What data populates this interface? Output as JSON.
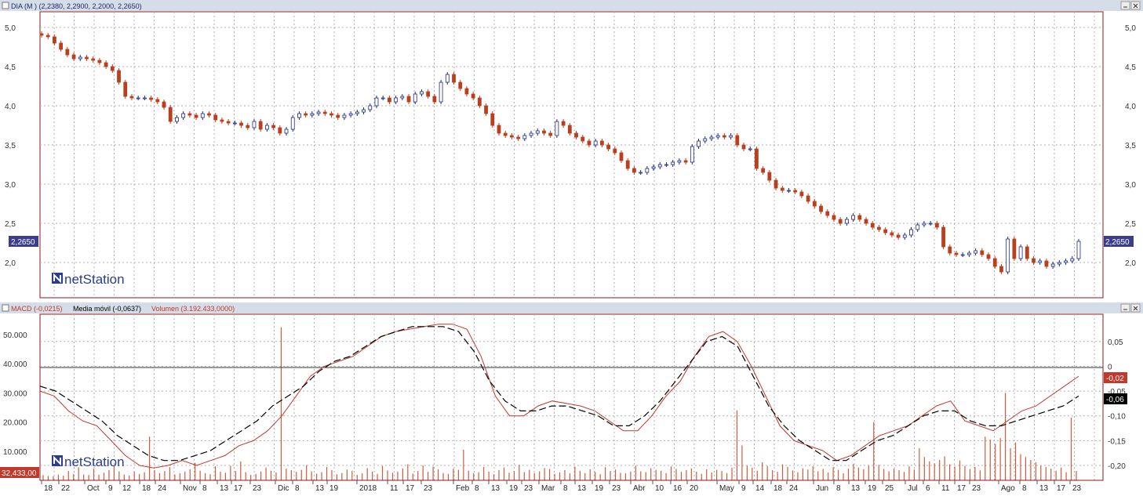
{
  "top_panel": {
    "title": "DIA (M ) (2,2380, 2,2900, 2,2000, 2,2650)",
    "last_price_label": "2,2650",
    "watermark": "netStation",
    "y_ticks": [
      "5,0",
      "4,5",
      "4,0",
      "3,5",
      "3,0",
      "2,5",
      "2,0"
    ],
    "controls": [
      "minimize-button",
      "close-button"
    ]
  },
  "bottom_panel": {
    "title_macd": "MACD (-0,0215)",
    "title_ma": "Media móvil (-0,0637)",
    "title_volume": "Volumen (3.192.433,0000)",
    "watermark": "netStation",
    "left_ticks": [
      "50.000",
      "40.000",
      "30.000",
      "20.000",
      "10.000"
    ],
    "right_ticks": [
      "0,05",
      "0",
      "-0,05",
      "-0,10",
      "-0,15",
      "-0,20"
    ],
    "macd_value_label": "-0,02",
    "signal_value_label": "-0,06",
    "volume_value_label": "32,433,00"
  },
  "x_axis": {
    "labels": [
      "18",
      "22",
      "Oct",
      "9",
      "12",
      "18",
      "24",
      "Nov",
      "8",
      "13",
      "17",
      "23",
      "Dic",
      "8",
      "13",
      "19",
      "2018",
      "11",
      "17",
      "23",
      "Feb",
      "8",
      "13",
      "19",
      "23",
      "Mar",
      "8",
      "13",
      "19",
      "23",
      "Abr",
      "10",
      "16",
      "20",
      "May",
      "9",
      "14",
      "18",
      "24",
      "Jun",
      "8",
      "13",
      "19",
      "25",
      "Jul",
      "6",
      "11",
      "17",
      "23",
      "Ago",
      "8",
      "13",
      "17",
      "23"
    ]
  },
  "colors": {
    "up": "#1f2a80",
    "down": "#b8401e",
    "macd_line": "#c0392b",
    "signal_line": "#000000",
    "volume": "#d25a3c",
    "grid": "#b0b0b0",
    "border": "#8b1a1a",
    "price_label_bg": "#3d3d8f",
    "macd_label_bg": "#c0392b",
    "signal_label_bg": "#000000",
    "title_bar": "#d5dde8"
  },
  "chart_data": [
    {
      "type": "candlestick",
      "ylim": [
        1.55,
        5.2
      ],
      "close_series": [
        4.9,
        4.88,
        4.8,
        4.72,
        4.65,
        4.6,
        4.62,
        4.6,
        4.58,
        4.55,
        4.5,
        4.45,
        4.3,
        4.12,
        4.1,
        4.1,
        4.1,
        4.08,
        4.05,
        3.98,
        3.8,
        3.85,
        3.9,
        3.88,
        3.85,
        3.9,
        3.88,
        3.82,
        3.8,
        3.78,
        3.78,
        3.75,
        3.72,
        3.8,
        3.7,
        3.75,
        3.72,
        3.65,
        3.7,
        3.85,
        3.9,
        3.88,
        3.9,
        3.92,
        3.9,
        3.88,
        3.85,
        3.88,
        3.9,
        3.92,
        3.95,
        4.0,
        4.1,
        4.1,
        4.05,
        4.1,
        4.12,
        4.05,
        4.15,
        4.18,
        4.12,
        4.05,
        4.3,
        4.4,
        4.3,
        4.22,
        4.15,
        4.1,
        4.0,
        3.9,
        3.75,
        3.65,
        3.62,
        3.6,
        3.58,
        3.62,
        3.65,
        3.68,
        3.65,
        3.62,
        3.8,
        3.75,
        3.65,
        3.6,
        3.55,
        3.5,
        3.55,
        3.5,
        3.45,
        3.4,
        3.3,
        3.2,
        3.15,
        3.15,
        3.2,
        3.22,
        3.25,
        3.25,
        3.28,
        3.3,
        3.28,
        3.48,
        3.55,
        3.58,
        3.6,
        3.62,
        3.6,
        3.62,
        3.5,
        3.45,
        3.45,
        3.2,
        3.15,
        3.05,
        2.95,
        2.92,
        2.92,
        2.9,
        2.85,
        2.78,
        2.72,
        2.65,
        2.6,
        2.55,
        2.5,
        2.55,
        2.6,
        2.55,
        2.5,
        2.45,
        2.42,
        2.38,
        2.35,
        2.32,
        2.35,
        2.42,
        2.48,
        2.5,
        2.5,
        2.45,
        2.2,
        2.12,
        2.1,
        2.1,
        2.12,
        2.15,
        2.1,
        2.05,
        1.95,
        1.88,
        2.3,
        2.05,
        2.2,
        2.05,
        2.0,
        2.02,
        1.95,
        1.98,
        2.0,
        2.02,
        2.05,
        2.27
      ]
    },
    {
      "type": "line",
      "ylim": [
        -0.23,
        0.105
      ],
      "series": [
        {
          "name": "MACD (-0,0215)",
          "values": [
            -0.05,
            -0.06,
            -0.09,
            -0.11,
            -0.12,
            -0.15,
            -0.18,
            -0.2,
            -0.205,
            -0.2,
            -0.19,
            -0.2,
            -0.19,
            -0.18,
            -0.16,
            -0.15,
            -0.13,
            -0.1,
            -0.06,
            -0.02,
            0.0,
            0.01,
            0.02,
            0.04,
            0.06,
            0.07,
            0.075,
            0.08,
            0.085,
            0.085,
            0.075,
            0.02,
            -0.06,
            -0.1,
            -0.1,
            -0.08,
            -0.07,
            -0.075,
            -0.08,
            -0.09,
            -0.11,
            -0.13,
            -0.13,
            -0.1,
            -0.06,
            -0.03,
            0.02,
            0.06,
            0.07,
            0.05,
            0.0,
            -0.06,
            -0.12,
            -0.15,
            -0.16,
            -0.17,
            -0.19,
            -0.18,
            -0.16,
            -0.14,
            -0.13,
            -0.12,
            -0.1,
            -0.08,
            -0.07,
            -0.11,
            -0.12,
            -0.13,
            -0.11,
            -0.09,
            -0.08,
            -0.06,
            -0.04,
            -0.02
          ]
        },
        {
          "name": "Media móvil (-0,0637)",
          "values": [
            -0.04,
            -0.05,
            -0.07,
            -0.09,
            -0.11,
            -0.14,
            -0.16,
            -0.18,
            -0.19,
            -0.19,
            -0.18,
            -0.17,
            -0.15,
            -0.13,
            -0.11,
            -0.08,
            -0.06,
            -0.04,
            -0.01,
            0.01,
            0.02,
            0.04,
            0.06,
            0.07,
            0.08,
            0.08,
            0.08,
            0.07,
            0.03,
            -0.03,
            -0.07,
            -0.09,
            -0.09,
            -0.08,
            -0.08,
            -0.09,
            -0.1,
            -0.12,
            -0.12,
            -0.1,
            -0.07,
            -0.03,
            0.01,
            0.05,
            0.06,
            0.04,
            -0.02,
            -0.08,
            -0.12,
            -0.15,
            -0.17,
            -0.19,
            -0.19,
            -0.17,
            -0.15,
            -0.14,
            -0.12,
            -0.1,
            -0.09,
            -0.09,
            -0.11,
            -0.12,
            -0.12,
            -0.11,
            -0.1,
            -0.09,
            -0.08,
            -0.06
          ]
        }
      ]
    },
    {
      "type": "bar",
      "name": "Volumen (3.192.433,0000)",
      "ylim": [
        0,
        57000
      ],
      "values_note_only": false,
      "values": [
        1800,
        1500,
        1400,
        2000,
        1600,
        3200,
        2100,
        4500,
        2000,
        1800,
        4000,
        1900,
        2600,
        3500,
        5000,
        3100,
        2000,
        1600,
        3000,
        2200,
        2800,
        15000,
        3500,
        2500,
        3200,
        4500,
        2000,
        2400,
        3000,
        3800,
        6000,
        3300,
        2500,
        2100,
        4800,
        3000,
        2600,
        5000,
        3200,
        6500,
        2800,
        1900,
        2200,
        3000,
        4400,
        3300,
        2700,
        52500,
        4000,
        3500,
        2900,
        3600,
        5200,
        3100,
        2300,
        2800,
        4600,
        3500,
        2100,
        2500,
        3700,
        3300,
        1900,
        2400,
        4200,
        3000,
        2200,
        4900,
        3400,
        2600,
        3000,
        4100,
        5500,
        2300,
        3200,
        5100,
        2900,
        4700,
        3800,
        2500,
        2200,
        4000,
        3600,
        10500,
        3300,
        2400,
        2800,
        4600,
        3000,
        2100,
        3500,
        4400,
        2600,
        3200,
        5300,
        2800,
        3600,
        2500,
        3100,
        4200,
        3900,
        2200,
        2700,
        3500,
        2400,
        4700,
        3300,
        2500,
        3800,
        2900,
        2100,
        4500,
        3200,
        3700,
        2600,
        2400,
        3000,
        5000,
        3100,
        2800,
        4200,
        3600,
        3300,
        2500,
        4800,
        3900,
        2900,
        3500,
        4100,
        3000,
        2200,
        3800,
        2700,
        3600,
        3200,
        2500,
        4300,
        24000,
        12000,
        5000,
        4300,
        3300,
        6200,
        4900,
        3500,
        2900,
        5500,
        4600,
        3400,
        2800,
        4100,
        3700,
        4800,
        3100,
        3900,
        2700,
        4500,
        3600,
        2400,
        4000,
        5600,
        4400,
        3800,
        5100,
        20000,
        5300,
        3900,
        3100,
        4000,
        3500,
        2900,
        4800,
        3700,
        11000,
        8000,
        6500,
        5800,
        7000,
        8200,
        5500,
        4700,
        6800,
        5000,
        3900,
        4600,
        3400,
        15000,
        14000,
        12500,
        14500,
        30000,
        11000,
        13000,
        9000,
        8000,
        7000,
        6200,
        5000,
        4600,
        4000,
        3300,
        4400,
        2800,
        21500,
        3200
      ]
    }
  ]
}
